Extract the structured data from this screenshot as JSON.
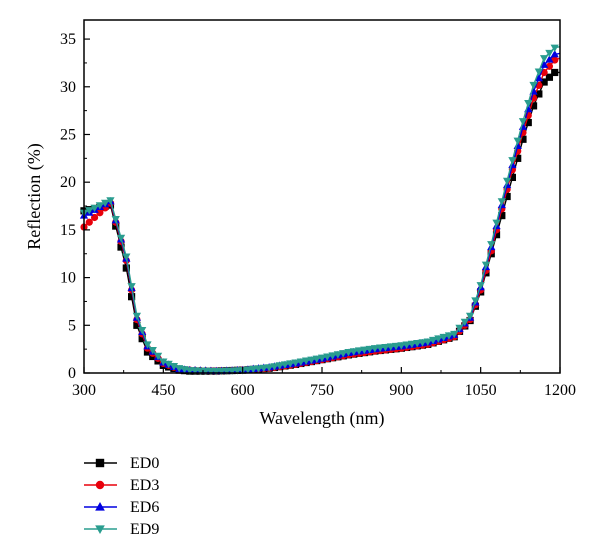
{
  "chart_data": {
    "type": "line",
    "xlabel": "Wavelength (nm)",
    "ylabel": "Reflection (%)",
    "xlim": [
      300,
      1200
    ],
    "ylim": [
      0,
      37
    ],
    "xticks": [
      300,
      450,
      600,
      750,
      900,
      1050,
      1200
    ],
    "yticks": [
      0,
      5,
      10,
      15,
      20,
      25,
      30,
      35
    ],
    "xtick_labels": [
      "300",
      "450",
      "600",
      "750",
      "900",
      "1050",
      "1200"
    ],
    "ytick_labels": [
      "0",
      "5",
      "10",
      "15",
      "20",
      "25",
      "30",
      "35"
    ],
    "grid": false,
    "legend_position": "below",
    "x": [
      300,
      350,
      380,
      400,
      420,
      450,
      480,
      500,
      550,
      600,
      650,
      700,
      750,
      800,
      850,
      900,
      950,
      1000,
      1030,
      1050,
      1070,
      1090,
      1110,
      1130,
      1150,
      1170,
      1190,
      1200
    ],
    "series": [
      {
        "name": "ED0",
        "marker": "square",
        "color": "#000000",
        "values": [
          17.0,
          17.6,
          11.0,
          5.0,
          2.2,
          0.8,
          0.3,
          0.2,
          0.2,
          0.3,
          0.5,
          0.9,
          1.4,
          1.9,
          2.3,
          2.6,
          3.0,
          3.8,
          5.5,
          8.5,
          12.5,
          16.5,
          20.5,
          24.5,
          28.0,
          30.5,
          31.5,
          31.5
        ]
      },
      {
        "name": "ED3",
        "marker": "circle",
        "color": "#e8000b",
        "values": [
          15.3,
          17.8,
          11.8,
          5.6,
          2.6,
          1.0,
          0.4,
          0.3,
          0.2,
          0.3,
          0.5,
          0.9,
          1.4,
          1.9,
          2.3,
          2.6,
          3.0,
          3.8,
          5.6,
          8.7,
          12.8,
          17.2,
          21.3,
          25.2,
          28.8,
          31.5,
          32.8,
          33.0
        ]
      },
      {
        "name": "ED6",
        "marker": "triangle-up",
        "color": "#0000e0",
        "values": [
          16.5,
          18.0,
          12.0,
          5.8,
          2.8,
          1.1,
          0.4,
          0.3,
          0.2,
          0.3,
          0.6,
          1.0,
          1.5,
          2.1,
          2.5,
          2.8,
          3.2,
          4.0,
          5.8,
          9.0,
          13.2,
          17.6,
          21.8,
          25.8,
          29.5,
          32.3,
          33.4,
          33.5
        ]
      },
      {
        "name": "ED9",
        "marker": "triangle-down",
        "color": "#2a9d8f",
        "values": [
          16.8,
          18.1,
          12.2,
          6.0,
          3.0,
          1.2,
          0.5,
          0.3,
          0.2,
          0.3,
          0.6,
          1.1,
          1.6,
          2.2,
          2.6,
          2.9,
          3.3,
          4.1,
          6.0,
          9.2,
          13.5,
          18.0,
          22.3,
          26.4,
          30.2,
          33.0,
          34.1,
          34.2
        ]
      }
    ]
  }
}
